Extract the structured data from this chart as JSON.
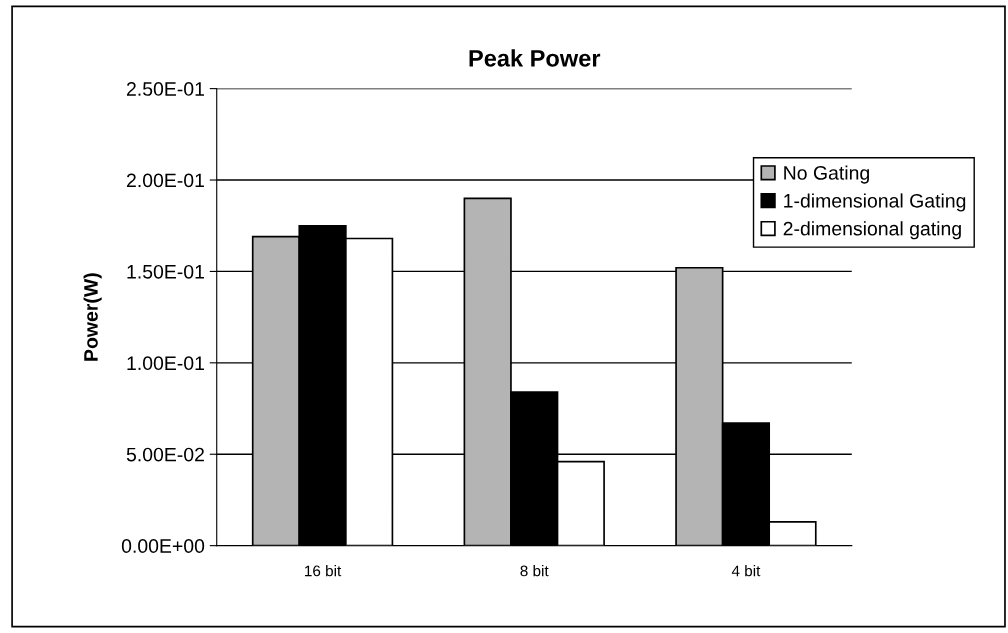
{
  "chart_data": {
    "type": "bar",
    "title": "Peak Power",
    "ylabel": "Power(W)",
    "categories": [
      "16 bit",
      "8 bit",
      "4 bit"
    ],
    "series": [
      {
        "name": "No Gating",
        "color": "#b4b4b4",
        "values": [
          0.169,
          0.19,
          0.152
        ]
      },
      {
        "name": "1-dimensional Gating",
        "color": "#000000",
        "values": [
          0.175,
          0.084,
          0.067
        ]
      },
      {
        "name": "2-dimensional gating",
        "color": "#ffffff",
        "values": [
          0.168,
          0.046,
          0.013
        ]
      }
    ],
    "ylim": [
      0,
      0.25
    ],
    "yticks": [
      {
        "value": 0,
        "label": "0.00E+00"
      },
      {
        "value": 0.05,
        "label": "5.00E-02"
      },
      {
        "value": 0.1,
        "label": "1.00E-01"
      },
      {
        "value": 0.15,
        "label": "1.50E-01"
      },
      {
        "value": 0.2,
        "label": "2.00E-01"
      },
      {
        "value": 0.25,
        "label": "2.50E-01"
      }
    ],
    "grid": "y",
    "legend": "top right"
  }
}
